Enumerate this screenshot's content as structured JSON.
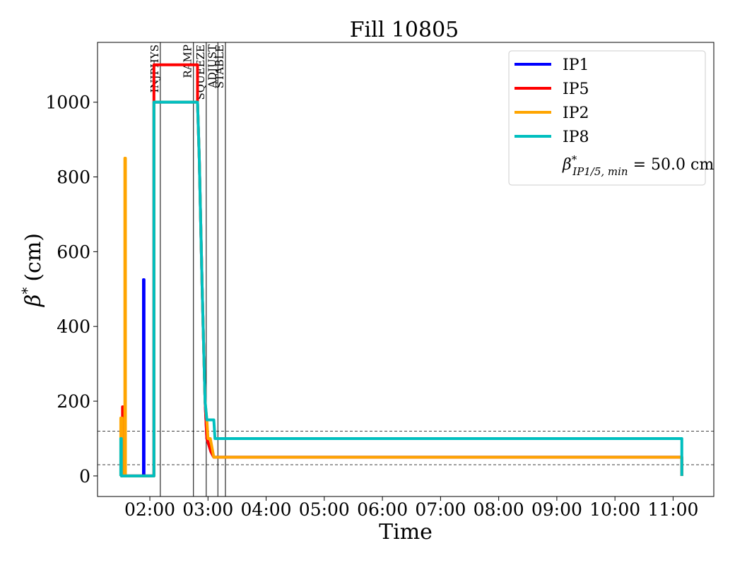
{
  "chart_data": {
    "type": "line",
    "title": "Fill 10805",
    "xlabel": "Time",
    "ylabel_symbol": "β",
    "ylabel_sup": "*",
    "ylabel_unit": "(cm)",
    "x_unit": "hours",
    "xlim": [
      1.1,
      11.7
    ],
    "ylim": [
      -55,
      1160
    ],
    "x_ticks": [
      {
        "value": 2,
        "label": "02:00"
      },
      {
        "value": 3,
        "label": "03:00"
      },
      {
        "value": 4,
        "label": "04:00"
      },
      {
        "value": 5,
        "label": "05:00"
      },
      {
        "value": 6,
        "label": "06:00"
      },
      {
        "value": 7,
        "label": "07:00"
      },
      {
        "value": 8,
        "label": "08:00"
      },
      {
        "value": 9,
        "label": "09:00"
      },
      {
        "value": 10,
        "label": "10:00"
      },
      {
        "value": 11,
        "label": "11:00"
      }
    ],
    "y_ticks": [
      {
        "value": 0,
        "label": "0"
      },
      {
        "value": 200,
        "label": "200"
      },
      {
        "value": 400,
        "label": "400"
      },
      {
        "value": 600,
        "label": "600"
      },
      {
        "value": 800,
        "label": "800"
      },
      {
        "value": 1000,
        "label": "1000"
      }
    ],
    "grid": false,
    "legend_position": "top-right",
    "legend_note": {
      "prefix": "β",
      "sup": "*",
      "sub": "IP1/5, min",
      "value": " = 50.0 cm"
    },
    "reference_lines": [
      120,
      30
    ],
    "mode_lines": [
      {
        "label": "INJPHYS",
        "x": 2.18
      },
      {
        "label": "RAMP",
        "x": 2.75
      },
      {
        "label": "SQUEEZE",
        "x": 2.97
      },
      {
        "label": "ADJUST",
        "x": 3.17
      },
      {
        "label": "STABLE",
        "x": 3.3
      }
    ],
    "series": [
      {
        "name": "IP1",
        "color": "#0000ff",
        "points": [
          [
            1.5,
            0
          ],
          [
            1.89,
            0
          ],
          [
            1.89,
            525
          ],
          [
            1.9,
            525
          ],
          [
            1.9,
            0
          ],
          [
            2.07,
            0
          ],
          [
            2.07,
            1000
          ],
          [
            2.82,
            1000
          ],
          [
            2.85,
            850
          ],
          [
            2.9,
            500
          ],
          [
            2.95,
            200
          ],
          [
            2.98,
            100
          ],
          [
            3.02,
            80
          ],
          [
            3.05,
            65
          ],
          [
            3.1,
            50
          ],
          [
            11.15,
            50
          ],
          [
            11.15,
            0
          ]
        ]
      },
      {
        "name": "IP5",
        "color": "#ff0000",
        "points": [
          [
            1.5,
            0
          ],
          [
            1.53,
            0
          ],
          [
            1.53,
            185
          ],
          [
            1.55,
            185
          ],
          [
            1.55,
            0
          ],
          [
            2.07,
            0
          ],
          [
            2.07,
            1100
          ],
          [
            2.82,
            1100
          ],
          [
            2.82,
            1000
          ],
          [
            2.85,
            850
          ],
          [
            2.9,
            500
          ],
          [
            2.95,
            200
          ],
          [
            2.98,
            100
          ],
          [
            3.02,
            80
          ],
          [
            3.05,
            65
          ],
          [
            3.1,
            50
          ],
          [
            11.15,
            50
          ],
          [
            11.15,
            0
          ]
        ]
      },
      {
        "name": "IP2",
        "color": "#ffa500",
        "points": [
          [
            1.5,
            0
          ],
          [
            1.5,
            155
          ],
          [
            1.52,
            155
          ],
          [
            1.52,
            0
          ],
          [
            1.57,
            0
          ],
          [
            1.57,
            850
          ],
          [
            1.58,
            850
          ],
          [
            1.58,
            0
          ],
          [
            2.07,
            0
          ],
          [
            2.07,
            1000
          ],
          [
            2.82,
            1000
          ],
          [
            2.85,
            850
          ],
          [
            2.9,
            500
          ],
          [
            2.95,
            200
          ],
          [
            2.98,
            150
          ],
          [
            3.0,
            100
          ],
          [
            3.04,
            100
          ],
          [
            3.1,
            50
          ],
          [
            11.15,
            50
          ],
          [
            11.15,
            0
          ]
        ]
      },
      {
        "name": "IP8",
        "color": "#00bfbf",
        "points": [
          [
            1.5,
            0
          ],
          [
            1.5,
            100
          ],
          [
            1.51,
            100
          ],
          [
            1.51,
            0
          ],
          [
            2.07,
            0
          ],
          [
            2.07,
            1000
          ],
          [
            2.82,
            1000
          ],
          [
            2.85,
            850
          ],
          [
            2.9,
            500
          ],
          [
            2.95,
            200
          ],
          [
            2.98,
            150
          ],
          [
            3.1,
            150
          ],
          [
            3.12,
            100
          ],
          [
            11.15,
            100
          ],
          [
            11.15,
            0
          ]
        ]
      }
    ]
  }
}
